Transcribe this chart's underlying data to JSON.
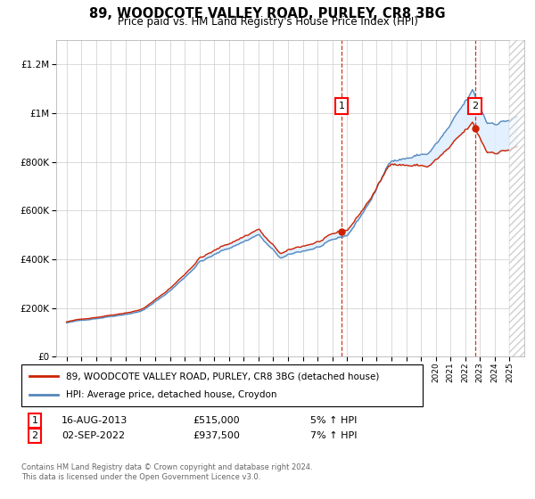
{
  "title": "89, WOODCOTE VALLEY ROAD, PURLEY, CR8 3BG",
  "subtitle": "Price paid vs. HM Land Registry's House Price Index (HPI)",
  "ylim": [
    0,
    1300000
  ],
  "yticks": [
    0,
    200000,
    400000,
    600000,
    800000,
    1000000,
    1200000
  ],
  "hpi_color": "#5588bb",
  "price_paid_color": "#cc2200",
  "fill_color": "#ddeeff",
  "sale1_year": 2013.62,
  "sale1_price": 515000,
  "sale2_year": 2022.67,
  "sale2_price": 937500,
  "legend_label1": "89, WOODCOTE VALLEY ROAD, PURLEY, CR8 3BG (detached house)",
  "legend_label2": "HPI: Average price, detached house, Croydon",
  "footer1": "Contains HM Land Registry data © Crown copyright and database right 2024.",
  "footer2": "This data is licensed under the Open Government Licence v3.0.",
  "sale1_date": "16-AUG-2013",
  "sale1_pct": "5% ↑ HPI",
  "sale2_date": "02-SEP-2022",
  "sale2_pct": "7% ↑ HPI"
}
